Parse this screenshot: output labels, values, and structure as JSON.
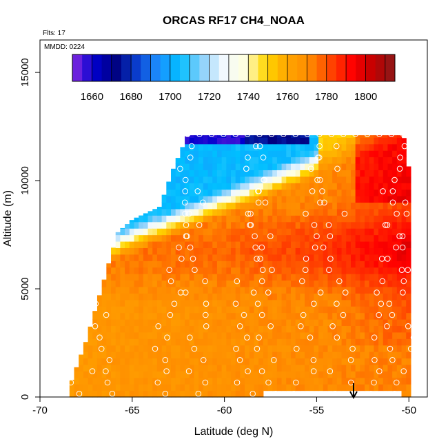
{
  "chart_data": {
    "type": "heatmap",
    "title": "ORCAS RF17 CH4_NOAA",
    "annotations": {
      "flights": "Flts: 17",
      "date": "MMDD: 0224"
    },
    "xlabel": "Latitude (deg N)",
    "ylabel": "Altitude (m)",
    "xlim": [
      -70,
      -49
    ],
    "ylim": [
      0,
      16500
    ],
    "x_ticks": [
      -70,
      -65,
      -60,
      -55,
      -50
    ],
    "x_tick_labels": [
      "-70",
      "-65",
      "-60",
      "-55",
      "-50"
    ],
    "y_ticks": [
      0,
      5000,
      10000,
      15000
    ],
    "y_tick_labels": [
      "0",
      "5000",
      "10000",
      "15000"
    ],
    "colorbar": {
      "min": 1650,
      "max": 1815,
      "ticks": [
        1660,
        1680,
        1700,
        1720,
        1740,
        1760,
        1780,
        1800
      ],
      "tick_labels": [
        "1660",
        "1680",
        "1700",
        "1720",
        "1740",
        "1760",
        "1780",
        "1800"
      ],
      "colors": [
        "#8a2be2",
        "#0000cd",
        "#000080",
        "#0a3fd0",
        "#1e90ff",
        "#00bfff",
        "#87cefa",
        "#f0f8ff",
        "#ffffe0",
        "#ffd700",
        "#ffa500",
        "#ff8c00",
        "#ff4500",
        "#ff0000",
        "#c00000",
        "#8b1a1a"
      ]
    },
    "marker": {
      "type": "arrow-down",
      "latitude": -53,
      "label": ""
    },
    "data_region": {
      "lat_start": -68.4,
      "lat_end": -49.9,
      "top_altitude_profile": [
        {
          "lat": -68.4,
          "alt": 500
        },
        {
          "lat": -67.5,
          "alt": 2600
        },
        {
          "lat": -66.5,
          "alt": 5500
        },
        {
          "lat": -65.8,
          "alt": 7600
        },
        {
          "lat": -65.0,
          "alt": 8200
        },
        {
          "lat": -63.5,
          "alt": 8800
        },
        {
          "lat": -62.8,
          "alt": 10500
        },
        {
          "lat": -62.0,
          "alt": 12100
        },
        {
          "lat": -50.3,
          "alt": 12100
        },
        {
          "lat": -49.9,
          "alt": 10000
        }
      ],
      "gap_bottom": {
        "lat_from": -58.0,
        "lat_to": -50.3,
        "alt": 300
      }
    },
    "vertical_profile_fields": [
      {
        "alt": 0,
        "value": 1768
      },
      {
        "alt": 3000,
        "value": 1770
      },
      {
        "alt": 6500,
        "value": 1775
      },
      {
        "alt": 9500,
        "value": 1765
      },
      {
        "alt": 12000,
        "value": 1745
      }
    ],
    "latitudinal_trend": "CH4 increases toward -50 (up to ~1800 ppb); low values (~1660-1720 ppb) near 12 km poleward of -56",
    "observation_points_note": "white open circles along flight profiles"
  }
}
